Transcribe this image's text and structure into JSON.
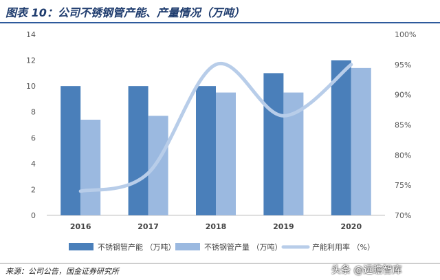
{
  "header": {
    "title": "图表 10：公司不锈钢管产能、产量情况（万吨）"
  },
  "footer": {
    "source": "来源：公司公告，国金证券研究所",
    "watermark": "头条 @远瞻智库"
  },
  "chart_data": {
    "type": "bar",
    "categories": [
      "2016",
      "2017",
      "2018",
      "2019",
      "2020"
    ],
    "series": [
      {
        "name": "不锈钢管产能 （万吨）",
        "type": "bar",
        "axis": "left",
        "color": "#4a7fba",
        "values": [
          10,
          10,
          10,
          11,
          12
        ]
      },
      {
        "name": "不锈钢管产量 （万吨）",
        "type": "bar",
        "axis": "left",
        "color": "#9bb9e0",
        "values": [
          7.4,
          7.7,
          9.5,
          9.5,
          11.4
        ]
      },
      {
        "name": "产能利用率 （%）",
        "type": "line",
        "smooth": true,
        "axis": "right",
        "color": "#b8cde9",
        "values": [
          74,
          77,
          95,
          86.5,
          95
        ]
      }
    ],
    "y_left": {
      "range": [
        0,
        14
      ],
      "ticks": [
        "0",
        "2",
        "4",
        "6",
        "8",
        "10",
        "12",
        "14"
      ],
      "tick_values": [
        0,
        2,
        4,
        6,
        8,
        10,
        12,
        14
      ]
    },
    "y_right": {
      "range": [
        70,
        100
      ],
      "ticks": [
        "70%",
        "75%",
        "80%",
        "85%",
        "90%",
        "95%",
        "100%"
      ],
      "tick_values": [
        70,
        75,
        80,
        85,
        90,
        95,
        100
      ]
    },
    "grid": false,
    "legend": "bottom"
  }
}
